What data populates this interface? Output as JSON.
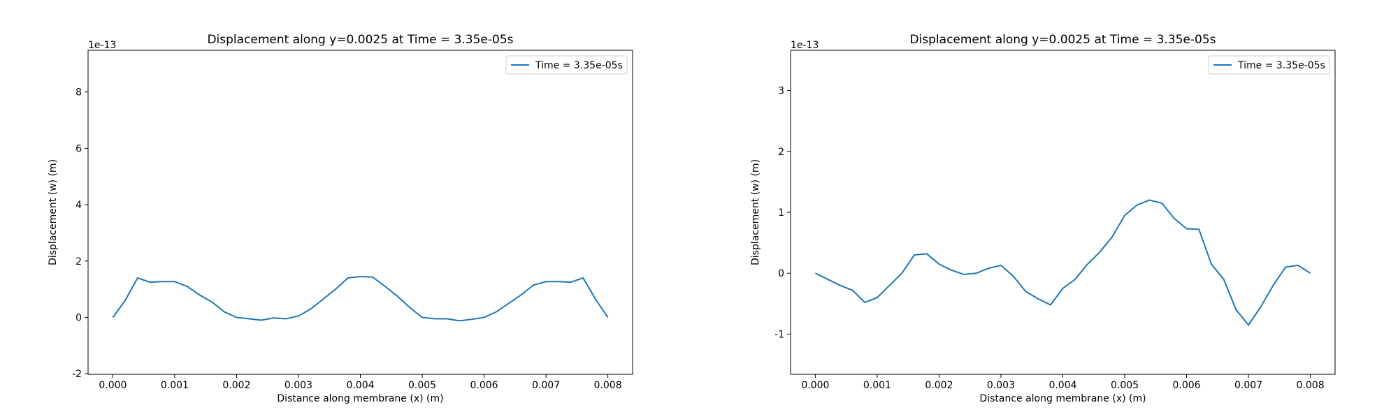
{
  "chart_data": [
    {
      "type": "line",
      "title": "Displacement along y=0.0025 at Time = 3.35e-05s",
      "xlabel": "Distance along membrane (x) (m)",
      "ylabel": "Displacement (w) (m)",
      "y_offset_label": "1e-13",
      "x": [
        0,
        0.0002,
        0.0004,
        0.0006,
        0.0008,
        0.001,
        0.0012,
        0.0014,
        0.0016,
        0.0018,
        0.002,
        0.0022,
        0.0024,
        0.0026,
        0.0028,
        0.003,
        0.0032,
        0.0034,
        0.0036,
        0.0038,
        0.004,
        0.0042,
        0.0044,
        0.0046,
        0.0048,
        0.005,
        0.0052,
        0.0054,
        0.0056,
        0.0058,
        0.006,
        0.0062,
        0.0064,
        0.0066,
        0.0068,
        0.007,
        0.0072,
        0.0074,
        0.0076,
        0.0078,
        0.008
      ],
      "series": [
        {
          "name": "Time = 3.35e-05s",
          "color": "#1f77b4",
          "values": [
            0,
            0.6,
            1.4,
            1.25,
            1.27,
            1.27,
            1.1,
            0.8,
            0.55,
            0.2,
            0,
            -0.05,
            -0.1,
            -0.02,
            -0.05,
            0.05,
            0.3,
            0.65,
            1.0,
            1.4,
            1.45,
            1.43,
            1.1,
            0.75,
            0.35,
            0,
            -0.05,
            -0.05,
            -0.12,
            -0.07,
            0,
            0.2,
            0.5,
            0.8,
            1.15,
            1.27,
            1.27,
            1.25,
            1.4,
            0.65,
            0
          ]
        }
      ],
      "xlim": [
        -0.0004,
        0.0084
      ],
      "ylim": [
        -2.02,
        9.48
      ],
      "xticks": [
        {
          "value": 0,
          "label": "0.000"
        },
        {
          "value": 0.001,
          "label": "0.001"
        },
        {
          "value": 0.002,
          "label": "0.002"
        },
        {
          "value": 0.003,
          "label": "0.003"
        },
        {
          "value": 0.004,
          "label": "0.004"
        },
        {
          "value": 0.005,
          "label": "0.005"
        },
        {
          "value": 0.006,
          "label": "0.006"
        },
        {
          "value": 0.007,
          "label": "0.007"
        },
        {
          "value": 0.008,
          "label": "0.008"
        }
      ],
      "yticks": [
        -2,
        0,
        2,
        4,
        6,
        8
      ],
      "legend": "upper right"
    },
    {
      "type": "line",
      "title": "Displacement along y=0.0025 at Time = 3.35e-05s",
      "xlabel": "Distance along membrane (x) (m)",
      "ylabel": "Displacement (w) (m)",
      "y_offset_label": "1e-13",
      "x": [
        0,
        0.0002,
        0.0004,
        0.0006,
        0.0008,
        0.001,
        0.0012,
        0.0014,
        0.0016,
        0.0018,
        0.002,
        0.0022,
        0.0024,
        0.0026,
        0.0028,
        0.003,
        0.0032,
        0.0034,
        0.0036,
        0.0038,
        0.004,
        0.0042,
        0.0044,
        0.0046,
        0.0048,
        0.005,
        0.0052,
        0.0054,
        0.0056,
        0.0058,
        0.006,
        0.0062,
        0.0064,
        0.0066,
        0.0068,
        0.007,
        0.0072,
        0.0074,
        0.0076,
        0.0078,
        0.008
      ],
      "series": [
        {
          "name": "Time = 3.35e-05s",
          "color": "#1f77b4",
          "values": [
            0,
            -0.1,
            -0.2,
            -0.28,
            -0.48,
            -0.4,
            -0.2,
            0,
            0.3,
            0.32,
            0.15,
            0.05,
            -0.02,
            0,
            0.08,
            0.13,
            -0.05,
            -0.3,
            -0.42,
            -0.52,
            -0.25,
            -0.1,
            0.15,
            0.35,
            0.6,
            0.95,
            1.12,
            1.2,
            1.15,
            0.9,
            0.73,
            0.72,
            0.15,
            -0.1,
            -0.6,
            -0.85,
            -0.55,
            -0.2,
            0.1,
            0.13,
            0
          ]
        }
      ],
      "xlim": [
        -0.0004,
        0.0084
      ],
      "ylim": [
        -1.66,
        3.66
      ],
      "xticks": [
        {
          "value": 0,
          "label": "0.000"
        },
        {
          "value": 0.001,
          "label": "0.001"
        },
        {
          "value": 0.002,
          "label": "0.002"
        },
        {
          "value": 0.003,
          "label": "0.003"
        },
        {
          "value": 0.004,
          "label": "0.004"
        },
        {
          "value": 0.005,
          "label": "0.005"
        },
        {
          "value": 0.006,
          "label": "0.006"
        },
        {
          "value": 0.007,
          "label": "0.007"
        },
        {
          "value": 0.008,
          "label": "0.008"
        }
      ],
      "yticks": [
        -1,
        0,
        1,
        2,
        3
      ],
      "legend": "upper right"
    }
  ]
}
